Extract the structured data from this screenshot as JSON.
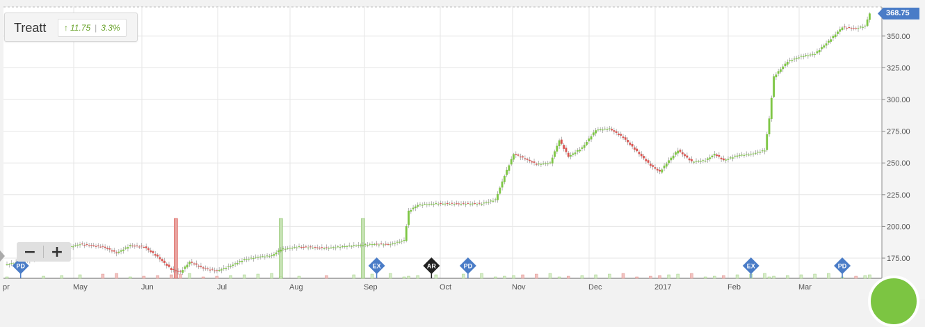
{
  "ticker": {
    "name": "Treatt",
    "change_arrow": "↑",
    "change_value": "11.75",
    "change_percent": "3.3%"
  },
  "last_price_label": "368.75",
  "zoom": {
    "minus": "−",
    "plus": "+"
  },
  "colors": {
    "up": "#7cc542",
    "down": "#d9534f",
    "marker_blue": "#4a7cc7",
    "marker_dark": "#222222",
    "price_tag": "#4a7cc7"
  },
  "chart_data": {
    "type": "candlestick",
    "title": "",
    "ylim": [
      162,
      372
    ],
    "y_ticks": [
      "175.00",
      "200.00",
      "225.00",
      "250.00",
      "275.00",
      "300.00",
      "325.00",
      "350.00"
    ],
    "x_labels": [
      "pr",
      "May",
      "Jun",
      "Jul",
      "Aug",
      "Sep",
      "Oct",
      "Nov",
      "Dec",
      "2017",
      "Feb",
      "Mar"
    ],
    "close_series": [
      {
        "t": 0,
        "v": 170
      },
      {
        "t": 8,
        "v": 176
      },
      {
        "t": 12,
        "v": 182
      },
      {
        "t": 16,
        "v": 186
      },
      {
        "t": 21,
        "v": 184
      },
      {
        "t": 24,
        "v": 179
      },
      {
        "t": 27,
        "v": 185
      },
      {
        "t": 30,
        "v": 184
      },
      {
        "t": 33,
        "v": 176
      },
      {
        "t": 36,
        "v": 166
      },
      {
        "t": 38,
        "v": 164
      },
      {
        "t": 40,
        "v": 172
      },
      {
        "t": 43,
        "v": 167
      },
      {
        "t": 46,
        "v": 165
      },
      {
        "t": 49,
        "v": 169
      },
      {
        "t": 52,
        "v": 174
      },
      {
        "t": 55,
        "v": 176
      },
      {
        "t": 58,
        "v": 177
      },
      {
        "t": 60,
        "v": 182
      },
      {
        "t": 64,
        "v": 184
      },
      {
        "t": 70,
        "v": 183
      },
      {
        "t": 76,
        "v": 185
      },
      {
        "t": 80,
        "v": 186
      },
      {
        "t": 84,
        "v": 186
      },
      {
        "t": 87,
        "v": 189
      },
      {
        "t": 88,
        "v": 212
      },
      {
        "t": 90,
        "v": 217
      },
      {
        "t": 94,
        "v": 218
      },
      {
        "t": 100,
        "v": 218
      },
      {
        "t": 104,
        "v": 218
      },
      {
        "t": 107,
        "v": 221
      },
      {
        "t": 109,
        "v": 240
      },
      {
        "t": 111,
        "v": 257
      },
      {
        "t": 113,
        "v": 254
      },
      {
        "t": 116,
        "v": 249
      },
      {
        "t": 119,
        "v": 250
      },
      {
        "t": 121,
        "v": 268
      },
      {
        "t": 123,
        "v": 255
      },
      {
        "t": 126,
        "v": 262
      },
      {
        "t": 129,
        "v": 276
      },
      {
        "t": 132,
        "v": 277
      },
      {
        "t": 135,
        "v": 270
      },
      {
        "t": 138,
        "v": 259
      },
      {
        "t": 141,
        "v": 248
      },
      {
        "t": 143,
        "v": 243
      },
      {
        "t": 145,
        "v": 252
      },
      {
        "t": 147,
        "v": 260
      },
      {
        "t": 150,
        "v": 251
      },
      {
        "t": 153,
        "v": 252
      },
      {
        "t": 155,
        "v": 257
      },
      {
        "t": 157,
        "v": 252
      },
      {
        "t": 160,
        "v": 256
      },
      {
        "t": 163,
        "v": 257
      },
      {
        "t": 166,
        "v": 260
      },
      {
        "t": 167,
        "v": 285
      },
      {
        "t": 168,
        "v": 318
      },
      {
        "t": 171,
        "v": 330
      },
      {
        "t": 174,
        "v": 334
      },
      {
        "t": 177,
        "v": 336
      },
      {
        "t": 180,
        "v": 346
      },
      {
        "t": 183,
        "v": 357
      },
      {
        "t": 186,
        "v": 356
      },
      {
        "t": 188,
        "v": 358
      },
      {
        "t": 189,
        "v": 368
      }
    ],
    "volume_spikes": [
      {
        "t": 37,
        "v": 43,
        "dir": "down"
      },
      {
        "t": 60,
        "v": 43,
        "dir": "up"
      },
      {
        "t": 78,
        "v": 43,
        "dir": "up"
      }
    ],
    "events": [
      {
        "t": 3,
        "label": "PD",
        "kind": "blue"
      },
      {
        "t": 81,
        "label": "EX",
        "kind": "blue"
      },
      {
        "t": 93,
        "label": "AR",
        "kind": "dark"
      },
      {
        "t": 101,
        "label": "PD",
        "kind": "blue"
      },
      {
        "t": 163,
        "label": "EX",
        "kind": "blue"
      },
      {
        "t": 183,
        "label": "PD",
        "kind": "blue"
      }
    ]
  }
}
